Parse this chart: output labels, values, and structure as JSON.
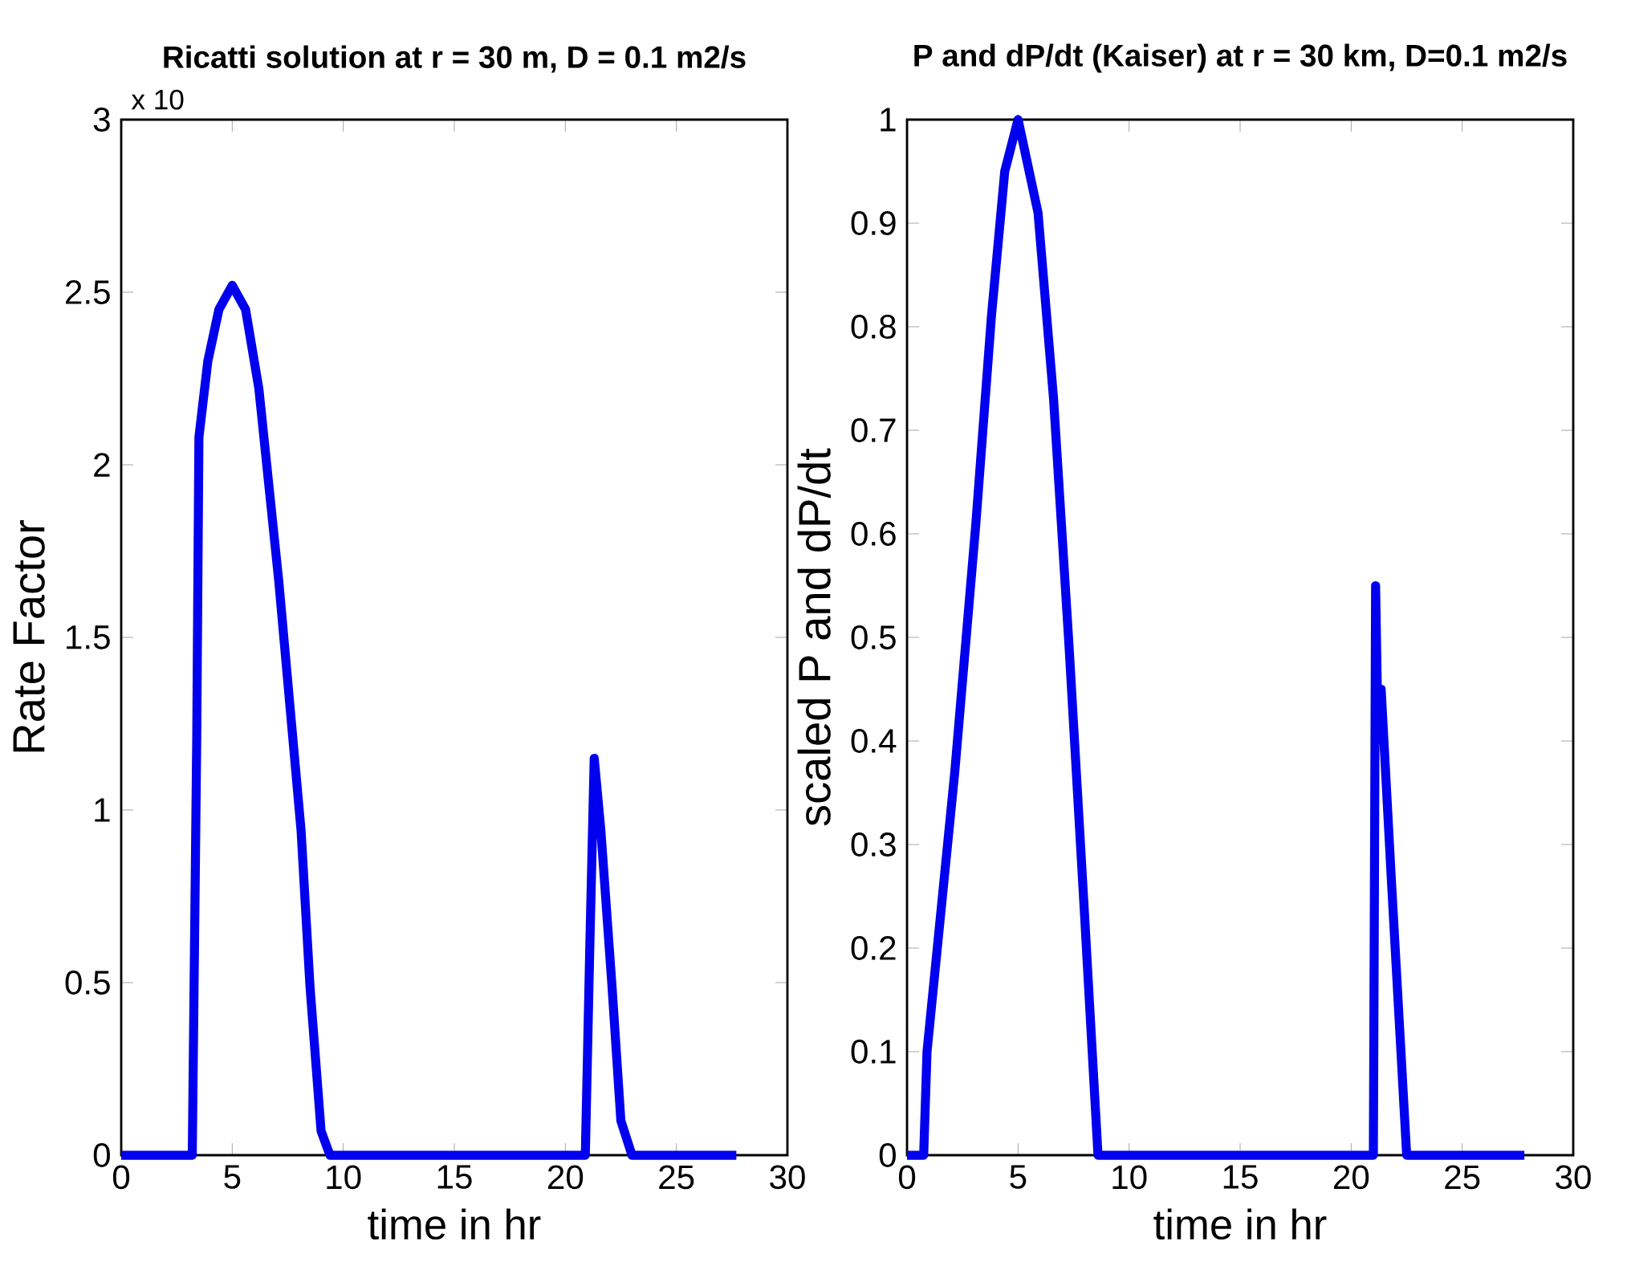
{
  "chart_data": [
    {
      "type": "line",
      "title": "Ricatti solution at r = 30 m, D = 0.1 m2/s",
      "xlabel": "time in hr",
      "ylabel": "Rate Factor",
      "annotations": [
        "x 10"
      ],
      "series": [
        {
          "color": "#0000ee",
          "x": [
            0,
            3.2,
            3.4,
            3.5,
            3.9,
            4.4,
            5.0,
            5.6,
            6.2,
            7.1,
            8.1,
            8.5,
            9.0,
            9.4,
            20.9,
            21.1,
            21.3,
            21.6,
            22.1,
            22.5,
            23.0,
            27.7
          ],
          "values": [
            0,
            0,
            1.2,
            2.08,
            2.3,
            2.45,
            2.52,
            2.45,
            2.22,
            1.66,
            0.94,
            0.49,
            0.07,
            0,
            0,
            0.6,
            1.15,
            0.94,
            0.49,
            0.1,
            0,
            0
          ]
        }
      ],
      "xlim": [
        0,
        30
      ],
      "ylim": [
        0,
        3
      ],
      "xticks": [
        0,
        5,
        10,
        15,
        20,
        25,
        30
      ],
      "yticks": [
        0,
        0.5,
        1,
        1.5,
        2,
        2.5,
        3
      ],
      "grid": false,
      "marker": "none",
      "line_style": "solid"
    },
    {
      "type": "line",
      "title": "P and dP/dt (Kaiser) at r = 30 km, D=0.1 m2/s",
      "xlabel": "time in hr",
      "ylabel": "scaled P and dP/dt",
      "series": [
        {
          "color": "#0000ee",
          "x": [
            0,
            0.75,
            0.9,
            2.15,
            3.1,
            3.8,
            4.4,
            5.0,
            5.9,
            6.6,
            7.3,
            8.0,
            8.6,
            21.0,
            21.1,
            21.2,
            21.35,
            21.8,
            22.5,
            27.8
          ],
          "values": [
            0,
            0,
            0.1,
            0.37,
            0.61,
            0.81,
            0.95,
            1.0,
            0.91,
            0.73,
            0.49,
            0.23,
            0,
            0,
            0.55,
            0.42,
            0.45,
            0.27,
            0,
            0
          ]
        }
      ],
      "xlim": [
        0,
        30
      ],
      "ylim": [
        0,
        1
      ],
      "xticks": [
        0,
        5,
        10,
        15,
        20,
        25,
        30
      ],
      "yticks": [
        0,
        0.1,
        0.2,
        0.3,
        0.4,
        0.5,
        0.6,
        0.7,
        0.8,
        0.9,
        1
      ],
      "grid": false,
      "marker": "none",
      "line_style": "solid"
    }
  ]
}
